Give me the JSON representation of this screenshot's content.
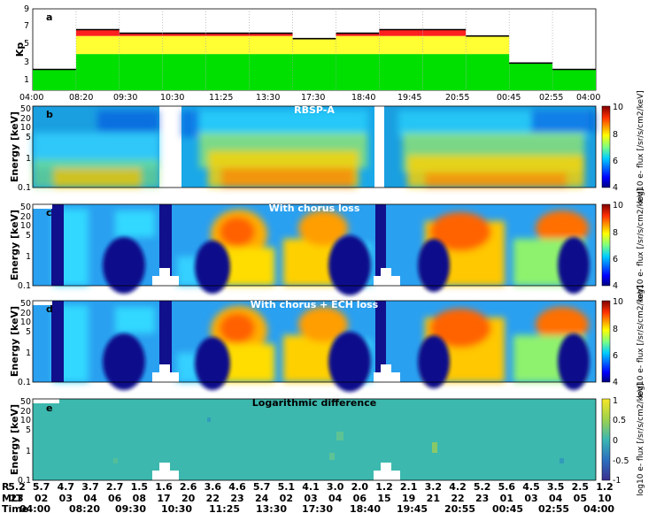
{
  "chart_data": [
    {
      "type": "bar",
      "panel_label": "a",
      "ylabel": "Kp",
      "yticks": [
        "1",
        "3",
        "5",
        "7",
        "9"
      ],
      "ylim": [
        0,
        9
      ],
      "xticks": [
        "04:00",
        "08:20",
        "09:30",
        "10:30",
        "11:25",
        "13:30",
        "17:30",
        "18:40",
        "19:45",
        "20:55",
        "00:45",
        "02:55",
        "04:00"
      ],
      "kp_values": [
        2.3,
        6.7,
        6.3,
        6.3,
        6.3,
        6.3,
        5.7,
        6.3,
        6.7,
        6.7,
        6.0,
        3.0,
        2.3
      ]
    },
    {
      "type": "heatmap",
      "panel_label": "b",
      "title": "RBSP-A",
      "ylabel": "Energy [keV]",
      "yticks": [
        "0.1",
        "1",
        "5",
        "10",
        "20",
        "50"
      ],
      "colorbar": {
        "ticks": [
          "4",
          "6",
          "8",
          "10"
        ],
        "label": "log10 e- flux [/sr/s/cm2/keV]"
      }
    },
    {
      "type": "heatmap",
      "panel_label": "c",
      "title": "With chorus loss",
      "ylabel": "Energy [keV]",
      "yticks": [
        "0.1",
        "1",
        "5",
        "10",
        "20",
        "50"
      ],
      "colorbar": {
        "ticks": [
          "4",
          "6",
          "8",
          "10"
        ],
        "label": "log10 e- flux [/sr/s/cm2/keV]"
      }
    },
    {
      "type": "heatmap",
      "panel_label": "d",
      "title": "With chorus + ECH loss",
      "ylabel": "Energy [keV]",
      "yticks": [
        "0.1",
        "1",
        "5",
        "10",
        "20",
        "50"
      ],
      "colorbar": {
        "ticks": [
          "4",
          "6",
          "8",
          "10"
        ],
        "label": "log10 e- flux [/sr/s/cm2/keV]"
      }
    },
    {
      "type": "heatmap",
      "panel_label": "e",
      "title": "Logarithmic difference",
      "ylabel": "Energy [keV]",
      "yticks": [
        "0.1",
        "1",
        "5",
        "10",
        "20",
        "50"
      ],
      "colorbar": {
        "ticks": [
          "-1",
          "-0.5",
          "0",
          "0.5",
          "1"
        ],
        "label": "log10 e- flux [/sr/s/cm2/keV]"
      }
    }
  ],
  "axis_table": {
    "labels": [
      "R",
      "MLT",
      "Time"
    ],
    "R": [
      "5.2",
      "5.7",
      "4.7",
      "3.7",
      "2.7",
      "1.5",
      "1.6",
      "2.6",
      "3.6",
      "4.6",
      "5.7",
      "5.1",
      "4.1",
      "3.0",
      "2.0",
      "1.2",
      "2.1",
      "3.2",
      "4.2",
      "5.2",
      "5.6",
      "4.5",
      "3.5",
      "2.5",
      "1.2"
    ],
    "MLT": [
      "23",
      "02",
      "03",
      "04",
      "06",
      "08",
      "17",
      "20",
      "22",
      "23",
      "24",
      "02",
      "03",
      "04",
      "06",
      "15",
      "19",
      "21",
      "22",
      "23",
      "01",
      "03",
      "04",
      "05",
      "10"
    ],
    "Time": [
      "04:00",
      "08:20",
      "09:30",
      "10:30",
      "11:25",
      "13:30",
      "17:30",
      "18:40",
      "19:45",
      "20:55",
      "00:45",
      "02:55",
      "04:00"
    ]
  },
  "colors": {
    "kp_green": "#00e000",
    "kp_yellow": "#ffff33",
    "kp_red": "#ff2020",
    "colormap": [
      "#00007f",
      "#0000ff",
      "#007fff",
      "#00ffff",
      "#7fff7f",
      "#ffff00",
      "#ff7f00",
      "#ff0000",
      "#7f0000"
    ],
    "diff_colormap": [
      "#3b2f8f",
      "#2b6fc0",
      "#3bb7b2",
      "#9fd24c",
      "#f6e627"
    ]
  }
}
